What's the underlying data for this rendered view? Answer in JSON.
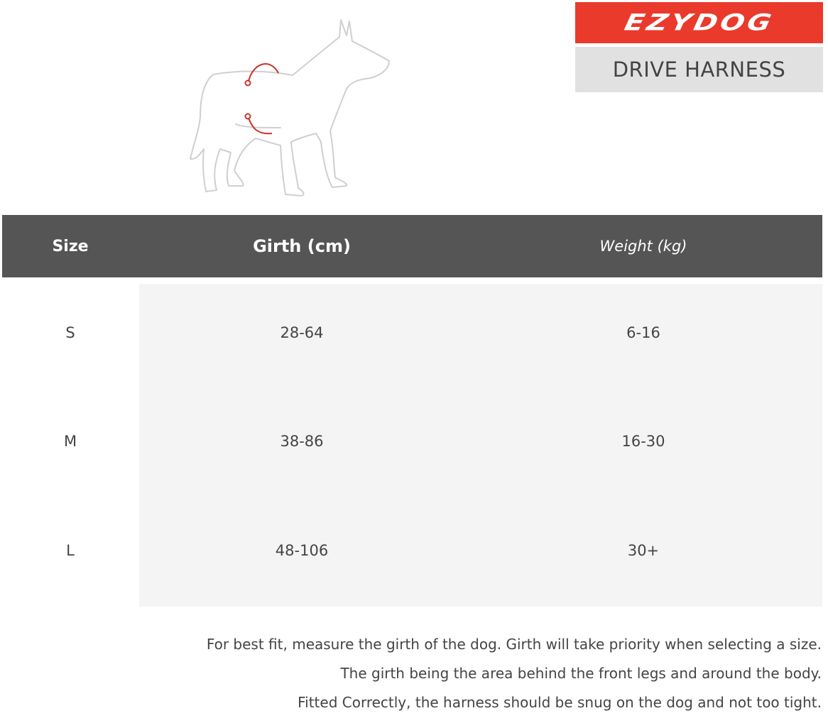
{
  "brand": {
    "logo_text": "EZYDOG",
    "product": "DRIVE HARNESS",
    "accent": "#ea3a2c"
  },
  "illustration": {
    "icon": "dog-girth-measure-icon",
    "highlight_color": "#c9342b"
  },
  "table": {
    "headers": {
      "size": "Size",
      "girth": "Girth (cm)",
      "weight": "Weight (kg)"
    },
    "rows": [
      {
        "size": "S",
        "girth": "28-64",
        "weight": "6-16"
      },
      {
        "size": "M",
        "girth": "38-86",
        "weight": "16-30"
      },
      {
        "size": "L",
        "girth": "48-106",
        "weight": "30+"
      }
    ]
  },
  "notes": [
    "For best fit, measure the girth of the dog. Girth will take priority when selecting a size.",
    "The girth being the area behind the front legs and around the body.",
    "Fitted Correctly, the harness should be snug on the dog and not too tight."
  ]
}
